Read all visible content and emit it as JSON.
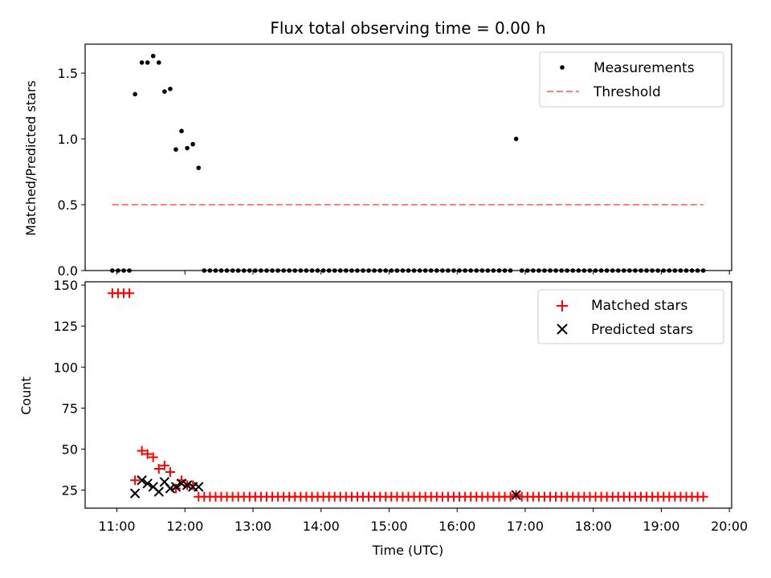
{
  "chart_data": [
    {
      "type": "scatter",
      "title": "Flux total observing time = 0.00 h",
      "xlabel": "",
      "ylabel": "Matched/Predicted stars",
      "xlim": [
        "10:32",
        "20:02"
      ],
      "ylim": [
        0,
        1.72
      ],
      "yticks": [
        "0.0",
        "0.5",
        "1.0",
        "1.5"
      ],
      "legend_position": "top-right",
      "series": [
        {
          "name": "Measurements",
          "marker": "dot",
          "color": "#000000",
          "x": [
            "10:56",
            "11:01",
            "11:06",
            "11:11",
            "11:16",
            "11:22",
            "11:27",
            "11:32",
            "11:37",
            "11:42",
            "11:47",
            "11:52",
            "11:57",
            "12:02",
            "12:07",
            "12:12",
            "12:17",
            "12:22",
            "12:27",
            "12:32",
            "12:37",
            "12:42",
            "12:47",
            "12:52",
            "12:57",
            "13:02",
            "13:07",
            "13:12",
            "13:17",
            "13:22",
            "13:27",
            "13:32",
            "13:37",
            "13:42",
            "13:47",
            "13:52",
            "13:57",
            "14:02",
            "14:07",
            "14:12",
            "14:17",
            "14:22",
            "14:27",
            "14:32",
            "14:37",
            "14:42",
            "14:47",
            "14:52",
            "14:57",
            "15:02",
            "15:07",
            "15:12",
            "15:17",
            "15:22",
            "15:27",
            "15:32",
            "15:37",
            "15:42",
            "15:47",
            "15:52",
            "15:57",
            "16:02",
            "16:07",
            "16:12",
            "16:17",
            "16:22",
            "16:27",
            "16:32",
            "16:37",
            "16:42",
            "16:47",
            "16:52",
            "16:57",
            "17:02",
            "17:07",
            "17:12",
            "17:17",
            "17:22",
            "17:27",
            "17:32",
            "17:37",
            "17:42",
            "17:47",
            "17:52",
            "17:57",
            "18:02",
            "18:07",
            "18:12",
            "18:17",
            "18:22",
            "18:27",
            "18:32",
            "18:37",
            "18:42",
            "18:47",
            "18:52",
            "18:57",
            "19:02",
            "19:07",
            "19:12",
            "19:17",
            "19:22",
            "19:27",
            "19:32",
            "19:37"
          ],
          "y": [
            0,
            0,
            0,
            0,
            1.34,
            1.58,
            1.58,
            1.63,
            1.58,
            1.36,
            1.38,
            0.92,
            1.06,
            0.93,
            0.96,
            0.78,
            0,
            0,
            0,
            0,
            0,
            0,
            0,
            0,
            0,
            0,
            0,
            0,
            0,
            0,
            0,
            0,
            0,
            0,
            0,
            0,
            0,
            0,
            0,
            0,
            0,
            0,
            0,
            0,
            0,
            0,
            0,
            0,
            0,
            0,
            0,
            0,
            0,
            0,
            0,
            0,
            0,
            0,
            0,
            0,
            0,
            0,
            0,
            0,
            0,
            0,
            0,
            0,
            0,
            0,
            0,
            1.0,
            0,
            0,
            0,
            0,
            0,
            0,
            0,
            0,
            0,
            0,
            0,
            0,
            0,
            0,
            0,
            0,
            0,
            0,
            0,
            0,
            0,
            0,
            0,
            0,
            0,
            0,
            0,
            0,
            0,
            0,
            0,
            0,
            0
          ]
        },
        {
          "name": "Threshold",
          "type": "line",
          "style": "dashed",
          "color": "#ff7f7f",
          "x": [
            "10:56",
            "19:37"
          ],
          "y": [
            0.5,
            0.5
          ]
        }
      ]
    },
    {
      "type": "scatter",
      "title": "",
      "xlabel": "Time (UTC)",
      "ylabel": "Count",
      "xlim": [
        "10:32",
        "20:02"
      ],
      "ylim": [
        14,
        152
      ],
      "yticks": [
        "25",
        "50",
        "75",
        "100",
        "125",
        "150"
      ],
      "xticks": [
        "11:00",
        "12:00",
        "13:00",
        "14:00",
        "15:00",
        "16:00",
        "17:00",
        "18:00",
        "19:00",
        "20:00"
      ],
      "legend_position": "top-right",
      "series": [
        {
          "name": "Matched stars",
          "marker": "plus",
          "color": "#ff0000",
          "x": [
            "10:56",
            "11:01",
            "11:06",
            "11:11",
            "11:16",
            "11:22",
            "11:27",
            "11:32",
            "11:37",
            "11:42",
            "11:47",
            "11:52",
            "11:57",
            "12:02",
            "12:07",
            "12:12",
            "12:17",
            "12:22",
            "12:27",
            "12:32",
            "12:37",
            "12:42",
            "12:47",
            "12:52",
            "12:57",
            "13:02",
            "13:07",
            "13:12",
            "13:17",
            "13:22",
            "13:27",
            "13:32",
            "13:37",
            "13:42",
            "13:47",
            "13:52",
            "13:57",
            "14:02",
            "14:07",
            "14:12",
            "14:17",
            "14:22",
            "14:27",
            "14:32",
            "14:37",
            "14:42",
            "14:47",
            "14:52",
            "14:57",
            "15:02",
            "15:07",
            "15:12",
            "15:17",
            "15:22",
            "15:27",
            "15:32",
            "15:37",
            "15:42",
            "15:47",
            "15:52",
            "15:57",
            "16:02",
            "16:07",
            "16:12",
            "16:17",
            "16:22",
            "16:27",
            "16:32",
            "16:37",
            "16:42",
            "16:47",
            "16:52",
            "16:57",
            "17:02",
            "17:07",
            "17:12",
            "17:17",
            "17:22",
            "17:27",
            "17:32",
            "17:37",
            "17:42",
            "17:47",
            "17:52",
            "17:57",
            "18:02",
            "18:07",
            "18:12",
            "18:17",
            "18:22",
            "18:27",
            "18:32",
            "18:37",
            "18:42",
            "18:47",
            "18:52",
            "18:57",
            "19:02",
            "19:07",
            "19:12",
            "19:17",
            "19:22",
            "19:27",
            "19:32",
            "19:37"
          ],
          "y": [
            145,
            145,
            145,
            145,
            31,
            49,
            47,
            45,
            38,
            40,
            36,
            26,
            31,
            28,
            28,
            21,
            21,
            21,
            21,
            21,
            21,
            21,
            21,
            21,
            21,
            21,
            21,
            21,
            21,
            21,
            21,
            21,
            21,
            21,
            21,
            21,
            21,
            21,
            21,
            21,
            21,
            21,
            21,
            21,
            21,
            21,
            21,
            21,
            21,
            21,
            21,
            21,
            21,
            21,
            21,
            21,
            21,
            21,
            21,
            21,
            21,
            21,
            21,
            21,
            21,
            21,
            21,
            21,
            21,
            21,
            21,
            22,
            21,
            21,
            21,
            21,
            21,
            21,
            21,
            21,
            21,
            21,
            21,
            21,
            21,
            21,
            21,
            21,
            21,
            21,
            21,
            21,
            21,
            21,
            21,
            21,
            21,
            21,
            21,
            21,
            21,
            21,
            21,
            21,
            21
          ]
        },
        {
          "name": "Predicted stars",
          "marker": "x",
          "color": "#000000",
          "x": [
            "11:16",
            "11:22",
            "11:27",
            "11:32",
            "11:37",
            "11:42",
            "11:47",
            "11:52",
            "11:57",
            "12:02",
            "12:07",
            "12:12",
            "16:52"
          ],
          "y": [
            23,
            31,
            29,
            27,
            24,
            30,
            26,
            27,
            29,
            28,
            27,
            27,
            22
          ]
        }
      ]
    }
  ]
}
